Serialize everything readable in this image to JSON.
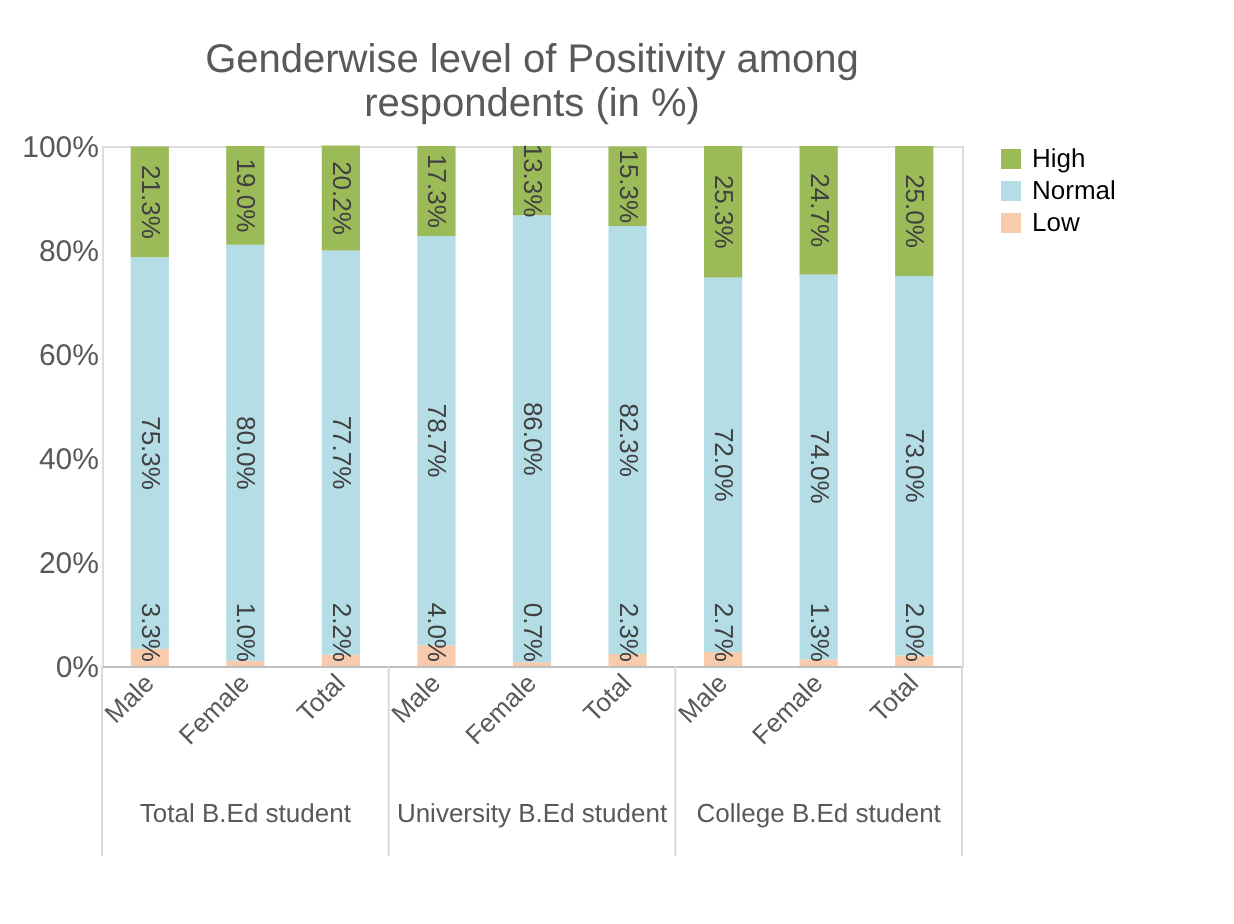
{
  "chart_data": {
    "type": "bar",
    "stacked": true,
    "title": "Genderwise level of Positivity among respondents (in %)",
    "categories": [
      "Male",
      "Female",
      "Total",
      "Male",
      "Female",
      "Total",
      "Male",
      "Female",
      "Total"
    ],
    "annotations": [
      "Total B.Ed student",
      "University B.Ed student",
      "College B.Ed student"
    ],
    "series": [
      {
        "name": "Low",
        "color": "#f8cbad",
        "values": [
          3.3,
          1.0,
          2.2,
          4.0,
          0.7,
          2.3,
          2.7,
          1.3,
          2.0
        ],
        "value_labels": [
          "3.3%",
          "1.0%",
          "2.2%",
          "4.0%",
          "0.7%",
          "2.3%",
          "2.7%",
          "1.3%",
          "2.0%"
        ]
      },
      {
        "name": "Normal",
        "color": "#b4dde6",
        "values": [
          75.3,
          80.0,
          77.7,
          78.7,
          86.0,
          82.3,
          72.0,
          74.0,
          73.0
        ],
        "value_labels": [
          "75.3%",
          "80.0%",
          "77.7%",
          "78.7%",
          "86.0%",
          "82.3%",
          "72.0%",
          "74.0%",
          "73.0%"
        ]
      },
      {
        "name": "High",
        "color": "#9bbb59",
        "values": [
          21.3,
          19.0,
          20.2,
          17.3,
          13.3,
          15.3,
          25.3,
          24.7,
          25.0
        ],
        "value_labels": [
          "21.3%",
          "19.0%",
          "20.2%",
          "17.3%",
          "13.3%",
          "15.3%",
          "25.3%",
          "24.7%",
          "25.0%"
        ]
      }
    ],
    "ylim": [
      0,
      100
    ],
    "yticks": [
      {
        "value": 0,
        "label": "0%"
      },
      {
        "value": 20,
        "label": "20%"
      },
      {
        "value": 40,
        "label": "40%"
      },
      {
        "value": 60,
        "label": "60%"
      },
      {
        "value": 80,
        "label": "80%"
      },
      {
        "value": 100,
        "label": "100%"
      }
    ],
    "grid": false,
    "legend": "right"
  }
}
